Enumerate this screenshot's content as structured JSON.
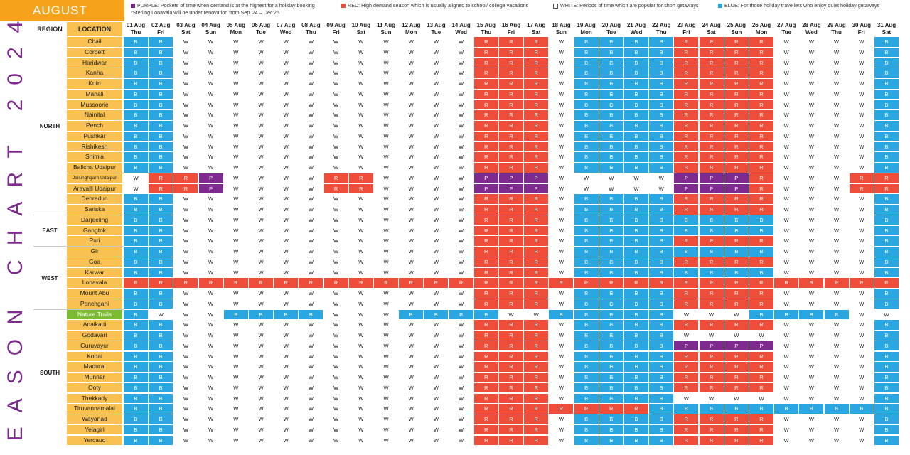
{
  "side_title": "SEASON CHART 2024",
  "month": "AUGUST",
  "legend": {
    "purple": "PURPLE: Pockets of time when demand is at the highest for a holiday booking",
    "red": "RED: High demand season which is usually aligned to school/ college vacations",
    "white": "WHITE: Periods of time which are popular for short getaways",
    "blue": "BLUE: For those holiday travellers who enjoy quiet holiday getaways",
    "note": "*Sterling Lonavala will be under renovation from Sep '24 – Dec'25"
  },
  "colors": {
    "B": "#2aa6e0",
    "R": "#ee4d3a",
    "P": "#7e2a8f",
    "W": "#ffffff",
    "loc": "#f9c152",
    "loc_green": "#7cbc32",
    "month": "#f7a21b",
    "title": "#7e2a8f"
  },
  "headers": {
    "region": "REGION",
    "location": "LOCATION"
  },
  "dates": [
    "01 Aug",
    "02 Aug",
    "03 Aug",
    "04 Aug",
    "05 Aug",
    "06 Aug",
    "07 Aug",
    "08 Aug",
    "09 Aug",
    "10 Aug",
    "11 Aug",
    "12 Aug",
    "13 Aug",
    "14 Aug",
    "15 Aug",
    "16 Aug",
    "17 Aug",
    "18 Aug",
    "19 Aug",
    "20 Aug",
    "21 Aug",
    "22 Aug",
    "23 Aug",
    "24 Aug",
    "25 Aug",
    "26 Aug",
    "27 Aug",
    "28 Aug",
    "29 Aug",
    "30 Aug",
    "31 Aug"
  ],
  "days": [
    "Thu",
    "Fri",
    "Sat",
    "Sun",
    "Mon",
    "Tue",
    "Wed",
    "Thu",
    "Fri",
    "Sat",
    "Sun",
    "Mon",
    "Tue",
    "Wed",
    "Thu",
    "Fri",
    "Sat",
    "Sun",
    "Mon",
    "Tue",
    "Wed",
    "Thu",
    "Fri",
    "Sat",
    "Sun",
    "Mon",
    "Tue",
    "Wed",
    "Thu",
    "Fri",
    "Sat"
  ],
  "regions": [
    {
      "name": "NORTH",
      "rows": 17
    },
    {
      "name": "EAST",
      "rows": 3
    },
    {
      "name": "WEST",
      "rows": 6
    },
    {
      "name": "SOUTH",
      "rows": 12
    }
  ],
  "rows": [
    {
      "loc": "Chail",
      "s": "BBWWWWWWWWWWWWRRRWBBBBRRRRWWWWB"
    },
    {
      "loc": "Corbett",
      "s": "BBWWWWWWWWWWWWRRRWBBBBRRRRWWWWB"
    },
    {
      "loc": "Haridwar",
      "s": "BBWWWWWWWWWWWWRRRWBBBBRRRRWWWWB"
    },
    {
      "loc": "Kanha",
      "s": "BBWWWWWWWWWWWWRRRWBBBBRRRRWWWWB"
    },
    {
      "loc": "Kufri",
      "s": "BBWWWWWWWWWWWWRRRWBBBBRRRRWWWWB"
    },
    {
      "loc": "Manali",
      "s": "BBWWWWWWWWWWWWRRRWBBBBRRRRWWWWB"
    },
    {
      "loc": "Mussoorie",
      "s": "BBWWWWWWWWWWWWRRRWBBBBRRRRWWWWB"
    },
    {
      "loc": "Nainital",
      "s": "BBWWWWWWWWWWWWRRRWBBBBRRRRWWWWB"
    },
    {
      "loc": "Pench",
      "s": "BBWWWWWWWWWWWWRRRWBBBBRRRRWWWWB"
    },
    {
      "loc": "Pushkar",
      "s": "BBWWWWWWWWWWWWRRRWBBBBRRRRWWWWB"
    },
    {
      "loc": "Rishikesh",
      "s": "BBWWWWWWWWWWWWRRRWBBBBRRRRWWWWB"
    },
    {
      "loc": "Shimla",
      "s": "BBWWWWWWWWWWWWRRRWBBBBRRRRWWWWB"
    },
    {
      "loc": "Balicha Udaipur",
      "s": "BBWWWWWWWWWWWWRRRWBBBBRRRRWWWWB"
    },
    {
      "loc": "Jaisinghgarh Udaipur",
      "s": "WRRPWWWWRRWWWWPPPWWWWWPPPRWWWRR",
      "small": true
    },
    {
      "loc": "Aravalli Udaipur",
      "s": "WRRPWWWWRRWWWWPPPWWWWWPPPRWWWRR"
    },
    {
      "loc": "Dehradun",
      "s": "BBWWWWWWWWWWWWRRRWBBBBRRRRWWWWB"
    },
    {
      "loc": "Sariska",
      "s": "BBWWWWWWWWWWWWRRRWBBBBRRRRWWWWB"
    },
    {
      "loc": "Darjeeling",
      "s": "BBWWWWWWWWWWWWRRRWBBBBBBBBWWWWB"
    },
    {
      "loc": "Gangtok",
      "s": "BBWWWWWWWWWWWWRRRWBBBBBBBBWWWWB"
    },
    {
      "loc": "Puri",
      "s": "BBWWWWWWWWWWWWRRRWBBBBRRRRWWWWB"
    },
    {
      "loc": "Gir",
      "s": "BBWWWWWWWWWWWWRRRWBBBBBBBBWWWWB"
    },
    {
      "loc": "Goa",
      "s": "BBWWWWWWWWWWWWRRRWBBBBRRRRWWWWB"
    },
    {
      "loc": "Karwar",
      "s": "BBWWWWWWWWWWWWRRRWBBBBBBBBWWWWB"
    },
    {
      "loc": "Lonavala",
      "s": "RRRRRRRRRRRRRRRRRRRRRRRRRRRRRRR"
    },
    {
      "loc": "Mount Abu",
      "s": "BBWWWWWWWWWWWWRRRWBBBBRRRRWWWWB"
    },
    {
      "loc": "Panchgani",
      "s": "BBWWWWWWWWWWWWRRRWBBBBRRRRWWWWB"
    },
    {
      "loc": "Nature Trails",
      "s": "BWWWBBBBWWWBBBBWWBBBBBWWWBBBBWW",
      "green": true
    },
    {
      "loc": "Anaikatti",
      "s": "BBWWWWWWWWWWWWRRRWBBBBRRRRWWWWB"
    },
    {
      "loc": "Godavari",
      "s": "BBWWWWWWWWWWWWRRRWBBBBWWWWWWWWB"
    },
    {
      "loc": "Guruvayur",
      "s": "BBWWWWWWWWWWWWRRRWBBBBPPPPWWWWB"
    },
    {
      "loc": "Kodai",
      "s": "BBWWWWWWWWWWWWRRRWBBBBRRRRWWWWB"
    },
    {
      "loc": "Madurai",
      "s": "BBWWWWWWWWWWWWRRRWBBBBRRRRWWWWB"
    },
    {
      "loc": "Munnar",
      "s": "BBWWWWWWWWWWWWRRRWBBBBRRRRWWWWB"
    },
    {
      "loc": "Ooty",
      "s": "BBWWWWWWWWWWWWRRRWBBBBRRRRWWWWB"
    },
    {
      "loc": "Thekkady",
      "s": "BBWWWWWWWWWWWWRRRWBBBBWWWWWWWWB"
    },
    {
      "loc": "Tiruvannamalai",
      "s": "BBWWWWWWWWWWWWRRRRRRRBBBBBBBBBB"
    },
    {
      "loc": "Wayanad",
      "s": "BBWWWWWWWWWWWWRRRWBBBBRRRRWWWWB"
    },
    {
      "loc": "Yelagiri",
      "s": "BBWWWWWWWWWWWWRRRWBBBBRRRRWWWWB"
    },
    {
      "loc": "Yercaud",
      "s": "BBWWWWWWWWWWWWRRRWBBBBRRRRWWWWB"
    }
  ]
}
